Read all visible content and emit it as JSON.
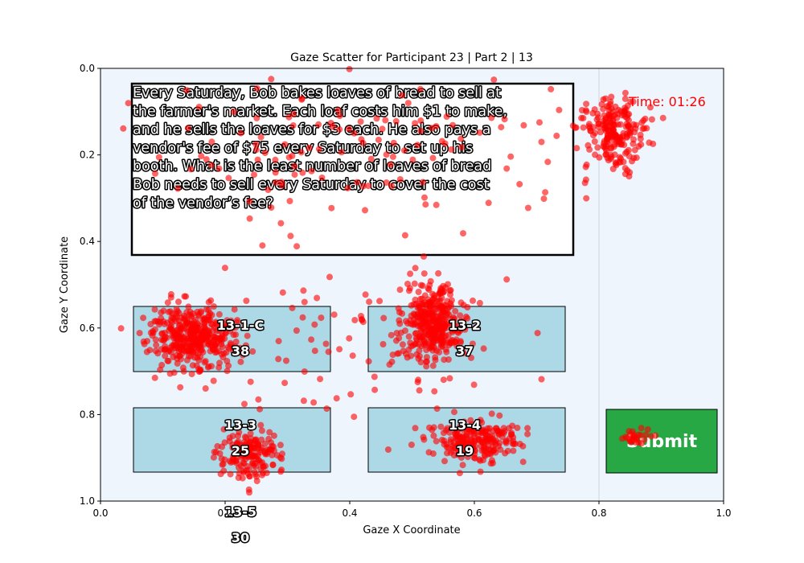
{
  "chart_data": {
    "type": "scatter",
    "title": "Gaze Scatter for Participant 23 | Part 2 | 13",
    "xlabel": "Gaze X Coordinate",
    "ylabel": "Gaze Y Coordinate",
    "xlim": [
      0.0,
      1.0
    ],
    "ylim": [
      1.0,
      0.0
    ],
    "y_inverted": true,
    "x_ticks": [
      "0.0",
      "0.2",
      "0.4",
      "0.6",
      "0.8",
      "1.0"
    ],
    "y_ticks": [
      "0.0",
      "0.2",
      "0.4",
      "0.6",
      "0.8",
      "1.0"
    ],
    "grid": false,
    "colors": {
      "points": "#ff0000",
      "plot_bg": "#eef5fd",
      "answer_box": "#add8e6",
      "submit": "#28a745",
      "timer": "#ff0000"
    },
    "question_text": [
      "Every Saturday, Bob bakes loaves of bread to sell at",
      "the farmer's market. Each loaf costs him $1 to make,",
      "and he sells the loaves for $3 each. He also pays a",
      "vendor's fee of $75 every Saturday to set up his",
      "booth. What is the least number of loaves of bread",
      "Bob needs to sell every Saturday to cover the cost",
      "of the vendor’s fee?"
    ],
    "timer_label": "Time: 01:26",
    "submit_label": "Submit",
    "answer_options": [
      {
        "id": "13-1-C",
        "value": "38"
      },
      {
        "id": "13-2",
        "value": "37"
      },
      {
        "id": "13-3",
        "value": "25"
      },
      {
        "id": "13-4",
        "value": "19"
      },
      {
        "id": "13-5",
        "value": "30"
      }
    ],
    "gaze_clusters": [
      {
        "name": "question",
        "cx": 0.4,
        "cy": 0.2,
        "sx": 0.2,
        "sy": 0.09,
        "n": 140
      },
      {
        "name": "timer",
        "cx": 0.825,
        "cy": 0.15,
        "sx": 0.025,
        "sy": 0.045,
        "n": 220
      },
      {
        "name": "option-13-1-C",
        "cx": 0.15,
        "cy": 0.62,
        "sx": 0.035,
        "sy": 0.035,
        "n": 420
      },
      {
        "name": "option-13-2",
        "cx": 0.53,
        "cy": 0.59,
        "sx": 0.025,
        "sy": 0.045,
        "n": 360
      },
      {
        "name": "option-13-3",
        "cx": 0.24,
        "cy": 0.89,
        "sx": 0.025,
        "sy": 0.025,
        "n": 170
      },
      {
        "name": "option-13-4",
        "cx": 0.6,
        "cy": 0.86,
        "sx": 0.035,
        "sy": 0.025,
        "n": 220
      },
      {
        "name": "submit",
        "cx": 0.86,
        "cy": 0.85,
        "sx": 0.012,
        "sy": 0.01,
        "n": 28
      },
      {
        "name": "scatter-between",
        "cx": 0.42,
        "cy": 0.62,
        "sx": 0.12,
        "sy": 0.12,
        "n": 90
      }
    ]
  }
}
